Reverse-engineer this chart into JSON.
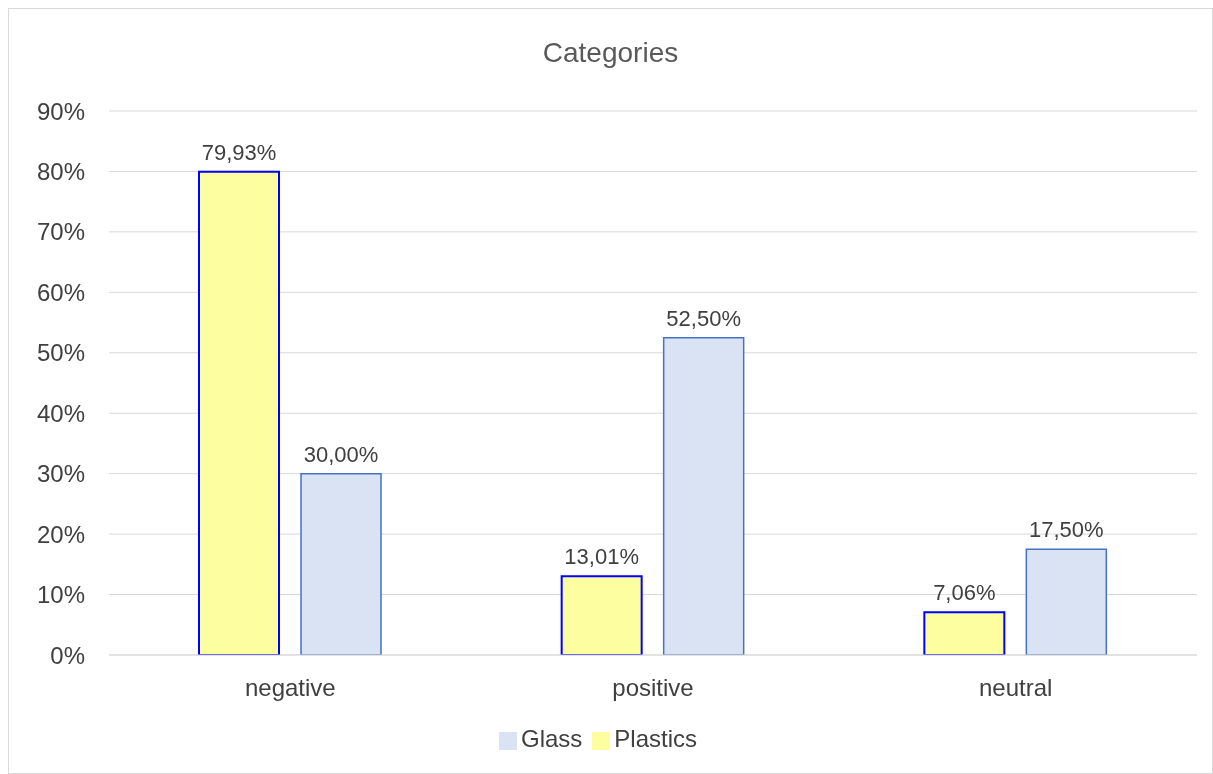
{
  "chart_data": {
    "type": "bar",
    "title": "Categories",
    "categories": [
      "negative",
      "positive",
      "neutral"
    ],
    "series": [
      {
        "name": "Plastics",
        "color": "#fdfea0",
        "values": [
          79.93,
          13.01,
          7.06
        ],
        "value_labels": [
          "79,93%",
          "13,01%",
          "7,06%"
        ]
      },
      {
        "name": "Glass",
        "color": "#dae3f3",
        "values": [
          30,
          52.5,
          17.5
        ],
        "value_labels": [
          "30,00%",
          "52,50%",
          "17,50%"
        ]
      }
    ],
    "ylim": [
      0,
      90
    ],
    "yticks": [
      {
        "value": 0,
        "label": "0%"
      },
      {
        "value": 10,
        "label": "10%"
      },
      {
        "value": 20,
        "label": "20%"
      },
      {
        "value": 30,
        "label": "30%"
      },
      {
        "value": 40,
        "label": "40%"
      },
      {
        "value": 50,
        "label": "50%"
      },
      {
        "value": 60,
        "label": "60%"
      },
      {
        "value": 70,
        "label": "70%"
      },
      {
        "value": 80,
        "label": "80%"
      },
      {
        "value": 90,
        "label": "90%"
      }
    ],
    "grid": "y",
    "legend": "bottom"
  }
}
